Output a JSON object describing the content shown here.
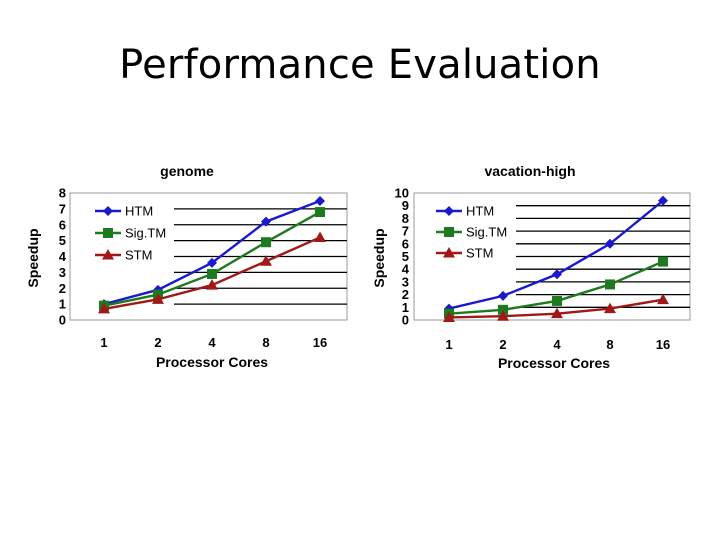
{
  "slide": {
    "title": "Performance Evaluation"
  },
  "chart_data": [
    {
      "type": "line",
      "title": "genome",
      "xlabel": "Processor Cores",
      "ylabel": "Speedup",
      "categories": [
        "1",
        "2",
        "4",
        "8",
        "16"
      ],
      "ylim": [
        0,
        8
      ],
      "yticks": [
        "0",
        "1",
        "2",
        "3",
        "4",
        "5",
        "6",
        "7",
        "8"
      ],
      "grid": true,
      "legend_position": "left",
      "series": [
        {
          "name": "HTM",
          "color": "#1a1acc",
          "marker": "diamond",
          "values": [
            1.0,
            1.9,
            3.6,
            6.2,
            7.5
          ]
        },
        {
          "name": "Sig.TM",
          "color": "#1e7a1e",
          "marker": "square",
          "values": [
            0.9,
            1.6,
            2.9,
            4.9,
            6.8
          ]
        },
        {
          "name": "STM",
          "color": "#a01818",
          "marker": "triangle",
          "values": [
            0.7,
            1.3,
            2.2,
            3.7,
            5.2
          ]
        }
      ]
    },
    {
      "type": "line",
      "title": "vacation-high",
      "xlabel": "Processor Cores",
      "ylabel": "Speedup",
      "categories": [
        "1",
        "2",
        "4",
        "8",
        "16"
      ],
      "ylim": [
        0,
        10
      ],
      "yticks": [
        "0",
        "1",
        "2",
        "3",
        "4",
        "5",
        "6",
        "7",
        "8",
        "9",
        "10"
      ],
      "grid": true,
      "legend_position": "left",
      "series": [
        {
          "name": "HTM",
          "color": "#1a1acc",
          "marker": "diamond",
          "values": [
            0.9,
            1.9,
            3.6,
            6.0,
            9.4
          ]
        },
        {
          "name": "Sig.TM",
          "color": "#1e7a1e",
          "marker": "square",
          "values": [
            0.5,
            0.8,
            1.5,
            2.8,
            4.6
          ]
        },
        {
          "name": "STM",
          "color": "#a01818",
          "marker": "triangle",
          "values": [
            0.2,
            0.3,
            0.5,
            0.9,
            1.6
          ]
        }
      ]
    }
  ]
}
